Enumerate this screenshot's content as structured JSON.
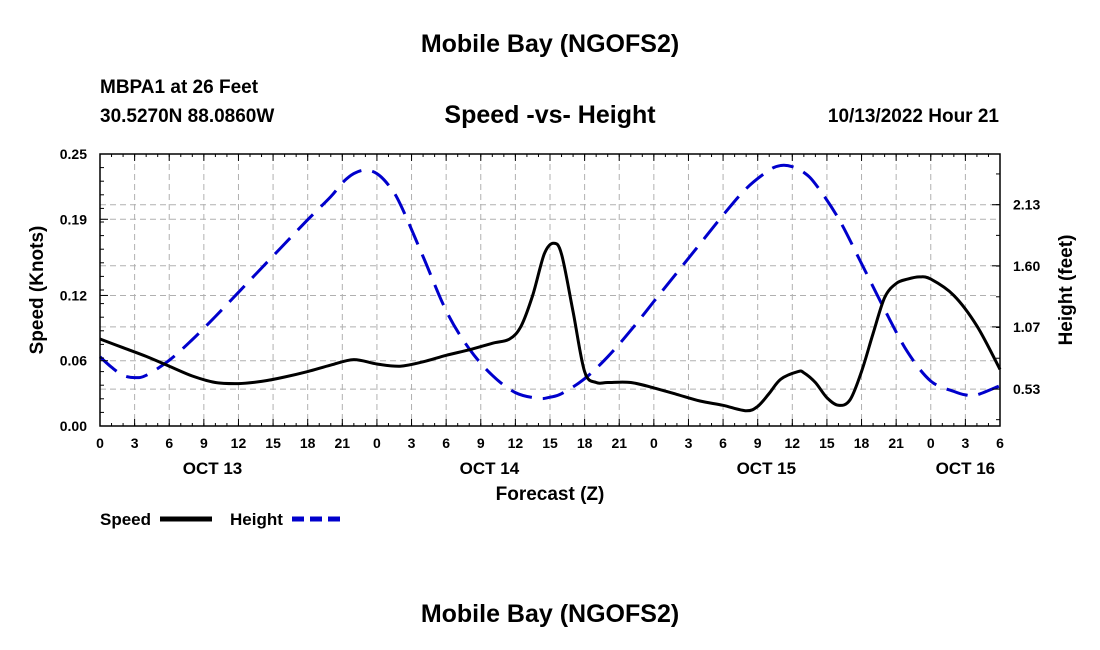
{
  "page": {
    "title": "Mobile Bay (NGOFS2)",
    "station": "MBPA1 at 26 Feet",
    "coords": "30.5270N  88.0860W",
    "chart_title": "Speed -vs- Height",
    "run_time": "10/13/2022 Hour 21",
    "footer_title": "Mobile Bay (NGOFS2)"
  },
  "colors": {
    "speed": "#000000",
    "height": "#0000cc",
    "grid": "#b0b0b0"
  },
  "chart_data": {
    "type": "line",
    "title": "Speed -vs- Height",
    "xlabel": "Forecast (Z)",
    "ylabel": "Speed (Knots)",
    "y2label": "Height (feet)",
    "x_unit": "hours since OCT 13 00Z",
    "x_range": [
      0,
      78
    ],
    "x_ticks": [
      {
        "x": 0,
        "label": "0"
      },
      {
        "x": 3,
        "label": "3"
      },
      {
        "x": 6,
        "label": "6"
      },
      {
        "x": 9,
        "label": "9"
      },
      {
        "x": 12,
        "label": "12"
      },
      {
        "x": 15,
        "label": "15"
      },
      {
        "x": 18,
        "label": "18"
      },
      {
        "x": 21,
        "label": "21"
      },
      {
        "x": 24,
        "label": "0"
      },
      {
        "x": 27,
        "label": "3"
      },
      {
        "x": 30,
        "label": "6"
      },
      {
        "x": 33,
        "label": "9"
      },
      {
        "x": 36,
        "label": "12"
      },
      {
        "x": 39,
        "label": "15"
      },
      {
        "x": 42,
        "label": "18"
      },
      {
        "x": 45,
        "label": "21"
      },
      {
        "x": 48,
        "label": "0"
      },
      {
        "x": 51,
        "label": "3"
      },
      {
        "x": 54,
        "label": "6"
      },
      {
        "x": 57,
        "label": "9"
      },
      {
        "x": 60,
        "label": "12"
      },
      {
        "x": 63,
        "label": "15"
      },
      {
        "x": 66,
        "label": "18"
      },
      {
        "x": 69,
        "label": "21"
      },
      {
        "x": 72,
        "label": "0"
      },
      {
        "x": 75,
        "label": "3"
      },
      {
        "x": 78,
        "label": "6"
      }
    ],
    "date_labels": [
      {
        "x": 9.75,
        "label": "OCT 13"
      },
      {
        "x": 33.75,
        "label": "OCT 14"
      },
      {
        "x": 57.75,
        "label": "OCT 15"
      },
      {
        "x": 75,
        "label": "OCT 16"
      }
    ],
    "y_left": {
      "min": 0,
      "max": 0.25,
      "ticks": [
        "0.00",
        "0.06",
        "0.12",
        "0.19",
        "0.25"
      ]
    },
    "y_right": {
      "min": 0.21,
      "max": 2.57,
      "ticks": [
        "0.53",
        "1.07",
        "1.60",
        "2.13"
      ]
    },
    "grid": true,
    "legend": {
      "position": "bottom-left",
      "speed_label": "Speed",
      "height_label": "Height"
    },
    "series": [
      {
        "name": "Speed",
        "axis": "left",
        "style": "solid",
        "x": [
          0,
          2,
          4,
          6,
          8,
          10,
          12,
          14,
          16,
          18,
          20,
          22,
          24,
          26,
          28,
          30,
          32,
          34,
          35.5,
          36.5,
          37.5,
          38.5,
          39.3,
          40,
          41,
          42,
          43,
          44,
          46,
          48,
          50,
          52,
          54,
          56,
          57,
          58,
          59,
          60.5,
          61,
          62,
          63,
          64,
          65,
          66,
          67,
          68,
          69,
          70,
          71,
          72,
          74,
          76,
          78
        ],
        "y": [
          0.08,
          0.072,
          0.064,
          0.055,
          0.046,
          0.04,
          0.039,
          0.041,
          0.045,
          0.05,
          0.056,
          0.061,
          0.057,
          0.055,
          0.059,
          0.065,
          0.07,
          0.076,
          0.08,
          0.092,
          0.12,
          0.158,
          0.168,
          0.158,
          0.105,
          0.05,
          0.04,
          0.04,
          0.04,
          0.035,
          0.029,
          0.023,
          0.019,
          0.014,
          0.018,
          0.03,
          0.043,
          0.05,
          0.049,
          0.04,
          0.026,
          0.019,
          0.024,
          0.05,
          0.085,
          0.118,
          0.131,
          0.135,
          0.137,
          0.135,
          0.12,
          0.092,
          0.052
        ]
      },
      {
        "name": "Height",
        "axis": "right",
        "style": "dashed",
        "x": [
          0,
          1,
          2,
          3,
          4,
          6,
          8,
          10,
          12,
          14,
          16,
          18,
          20,
          21,
          22,
          23,
          24,
          25,
          26,
          28,
          30,
          32,
          34,
          36,
          38,
          39,
          40,
          42,
          44,
          46,
          48,
          50,
          52,
          54,
          56,
          58,
          59,
          60,
          61,
          62,
          64,
          66,
          68,
          70,
          72,
          74,
          75,
          76,
          78
        ],
        "y": [
          0.81,
          0.72,
          0.65,
          0.63,
          0.65,
          0.78,
          0.96,
          1.16,
          1.37,
          1.58,
          1.79,
          2.0,
          2.2,
          2.32,
          2.4,
          2.43,
          2.4,
          2.3,
          2.14,
          1.68,
          1.21,
          0.88,
          0.65,
          0.5,
          0.45,
          0.46,
          0.49,
          0.62,
          0.81,
          1.04,
          1.29,
          1.54,
          1.79,
          2.04,
          2.27,
          2.43,
          2.47,
          2.46,
          2.41,
          2.31,
          2.01,
          1.62,
          1.22,
          0.85,
          0.6,
          0.51,
          0.48,
          0.48,
          0.56
        ]
      }
    ]
  }
}
